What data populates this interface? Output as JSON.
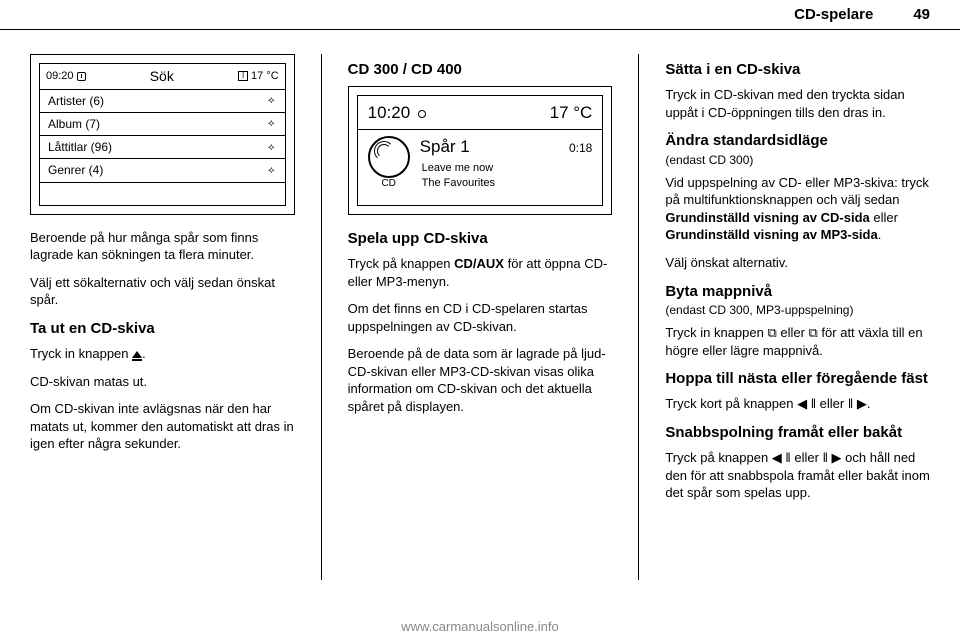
{
  "header": {
    "section": "CD-spelare",
    "page": "49"
  },
  "col1": {
    "shot": {
      "time": "09:20",
      "title": "Sök",
      "temp": "17 °C",
      "rows": [
        {
          "label": "Artister (6)"
        },
        {
          "label": "Album (7)"
        },
        {
          "label": "Låttitlar (96)"
        },
        {
          "label": "Genrer (4)"
        }
      ]
    },
    "p1": "Beroende på hur många spår som finns lagrade kan sökningen ta flera minuter.",
    "p2": "Välj ett sökalternativ och välj sedan önskat spår.",
    "h1": "Ta ut en CD-skiva",
    "p3a": "Tryck in knappen ",
    "p3b": ".",
    "p4": "CD-skivan matas ut.",
    "p5": "Om CD-skivan inte avlägsnas när den har matats ut, kommer den automatiskt att dras in igen efter några sekunder."
  },
  "col2": {
    "h1": "CD 300 / CD 400",
    "shot": {
      "time": "10:20",
      "temp": "17 °C",
      "track": "Spår 1",
      "tracktime": "0:18",
      "line1": "Leave me now",
      "line2": "The Favourites",
      "cdlabel": "CD"
    },
    "h2": "Spela upp CD-skiva",
    "p1": "Tryck på knappen CD/AUX för att öppna CD- eller MP3-menyn.",
    "p2": "Om det finns en CD i CD-spelaren startas uppspelningen av CD-skivan.",
    "p3": "Beroende på de data som är lagrade på ljud-CD-skivan eller MP3-CD-skivan visas olika information om CD-skivan och det aktuella spåret på displayen."
  },
  "col3": {
    "h1": "Sätta i en CD-skiva",
    "p1": "Tryck in CD-skivan med den tryckta sidan uppåt i CD-öppningen tills den dras in.",
    "h2": "Ändra standardsidläge",
    "sub2": "(endast CD 300)",
    "p2": "Vid uppspelning av CD- eller MP3-skiva: tryck på multifunktionsknappen och välj sedan Grundinställd visning av CD-sida eller Grundinställd visning av MP3-sida.",
    "p3": "Välj önskat alternativ.",
    "h3": "Byta mappnivå",
    "sub3": "(endast CD 300, MP3-uppspelning)",
    "p4": "Tryck in knappen ⧉ eller ⧉ för att växla till en högre eller lägre mappnivå.",
    "h4": "Hoppa till nästa eller föregående fäst",
    "p5": "Tryck kort på knappen ◀ ‖ eller ‖ ▶.",
    "h5": "Snabbspolning framåt eller bakåt",
    "p6": "Tryck på knappen ◀ ‖ eller ‖ ▶ och håll ned den för att snabbspola framåt eller bakåt inom det spår som spelas upp."
  },
  "footer": "www.carmanualsonline.info"
}
